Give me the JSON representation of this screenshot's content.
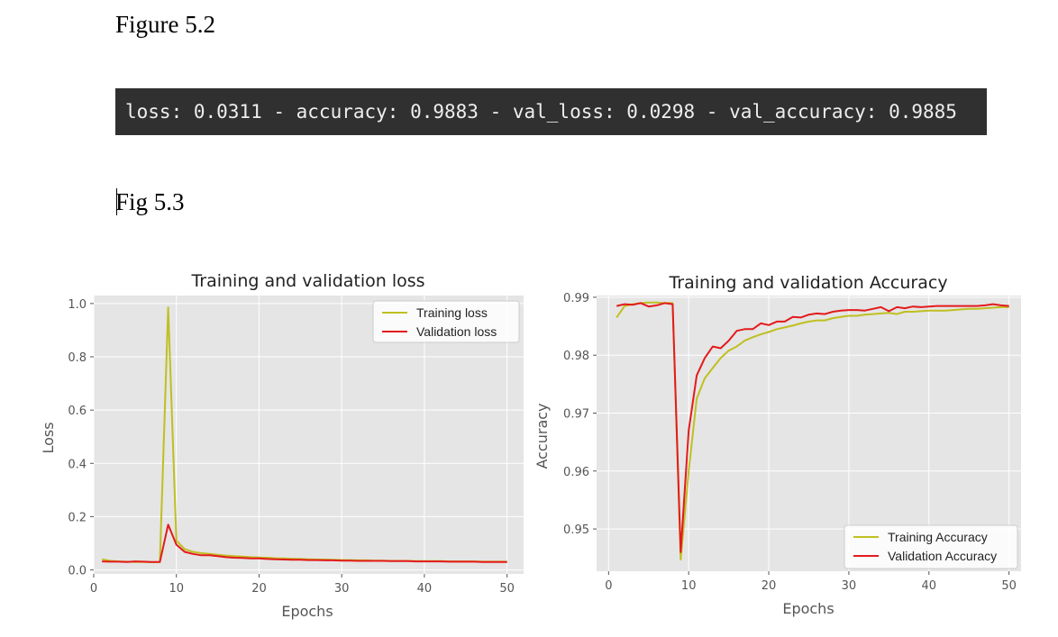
{
  "document": {
    "figure_5_2_label": "Figure 5.2",
    "console_output": "loss: 0.0311 - accuracy: 0.9883 - val_loss: 0.0298 - val_accuracy: 0.9885",
    "figure_5_3_label": "Fig 5.3"
  },
  "colors": {
    "training": "#bfbf22",
    "validation": "#e41a1c",
    "plot_background": "#e5e5e5",
    "grid": "#ffffff",
    "console_background": "#303030"
  },
  "chart_data": [
    {
      "type": "line",
      "title": "Training and validation loss",
      "xlabel": "Epochs",
      "ylabel": "Loss",
      "xlim": [
        0,
        52
      ],
      "ylim": [
        -0.015,
        1.03
      ],
      "xticks": [
        0,
        10,
        20,
        30,
        40,
        50
      ],
      "yticks": [
        0.0,
        0.2,
        0.4,
        0.6,
        0.8,
        1.0
      ],
      "ytick_labels": [
        "0.0",
        "0.2",
        "0.4",
        "0.6",
        "0.8",
        "1.0"
      ],
      "grid": true,
      "legend_position": "top-right",
      "x": [
        1,
        2,
        3,
        4,
        5,
        6,
        7,
        8,
        9,
        10,
        11,
        12,
        13,
        14,
        15,
        16,
        17,
        18,
        19,
        20,
        21,
        22,
        23,
        24,
        25,
        26,
        27,
        28,
        29,
        30,
        31,
        32,
        33,
        34,
        35,
        36,
        37,
        38,
        39,
        40,
        41,
        42,
        43,
        44,
        45,
        46,
        47,
        48,
        49,
        50
      ],
      "series": [
        {
          "name": "Training loss",
          "color": "#bfbf22",
          "values": [
            0.04,
            0.034,
            0.032,
            0.031,
            0.03,
            0.03,
            0.029,
            0.03,
            0.985,
            0.11,
            0.078,
            0.068,
            0.063,
            0.06,
            0.057,
            0.054,
            0.052,
            0.05,
            0.048,
            0.047,
            0.046,
            0.044,
            0.043,
            0.042,
            0.041,
            0.04,
            0.039,
            0.039,
            0.038,
            0.037,
            0.037,
            0.036,
            0.036,
            0.035,
            0.035,
            0.034,
            0.034,
            0.034,
            0.033,
            0.033,
            0.033,
            0.033,
            0.032,
            0.032,
            0.032,
            0.032,
            0.031,
            0.031,
            0.031,
            0.031
          ]
        },
        {
          "name": "Validation loss",
          "color": "#e41a1c",
          "values": [
            0.032,
            0.031,
            0.031,
            0.03,
            0.032,
            0.031,
            0.03,
            0.03,
            0.17,
            0.095,
            0.068,
            0.06,
            0.055,
            0.055,
            0.052,
            0.048,
            0.046,
            0.045,
            0.043,
            0.043,
            0.041,
            0.04,
            0.039,
            0.038,
            0.038,
            0.037,
            0.037,
            0.036,
            0.036,
            0.035,
            0.035,
            0.034,
            0.034,
            0.034,
            0.034,
            0.033,
            0.033,
            0.033,
            0.032,
            0.032,
            0.032,
            0.032,
            0.031,
            0.031,
            0.031,
            0.031,
            0.03,
            0.03,
            0.03,
            0.03
          ]
        }
      ]
    },
    {
      "type": "line",
      "title": "Training and validation Accuracy",
      "xlabel": "Epochs",
      "ylabel": "Accuracy",
      "xlim": [
        -1.5,
        51.5
      ],
      "ylim": [
        0.9427,
        0.9903
      ],
      "xticks": [
        0,
        10,
        20,
        30,
        40,
        50
      ],
      "yticks": [
        0.95,
        0.96,
        0.97,
        0.98,
        0.99
      ],
      "ytick_labels": [
        "0.95",
        "0.96",
        "0.97",
        "0.98",
        "0.99"
      ],
      "grid": true,
      "legend_position": "lower-right",
      "x": [
        1,
        2,
        3,
        4,
        5,
        6,
        7,
        8,
        9,
        10,
        11,
        12,
        13,
        14,
        15,
        16,
        17,
        18,
        19,
        20,
        21,
        22,
        23,
        24,
        25,
        26,
        27,
        28,
        29,
        30,
        31,
        32,
        33,
        34,
        35,
        36,
        37,
        38,
        39,
        40,
        41,
        42,
        43,
        44,
        45,
        46,
        47,
        48,
        49,
        50
      ],
      "series": [
        {
          "name": "Training Accuracy",
          "color": "#bfbf22",
          "values": [
            0.9865,
            0.9885,
            0.9888,
            0.989,
            0.9891,
            0.9891,
            0.989,
            0.989,
            0.9447,
            0.96,
            0.9725,
            0.976,
            0.9778,
            0.9795,
            0.9808,
            0.9815,
            0.9825,
            0.9831,
            0.9836,
            0.984,
            0.9845,
            0.9848,
            0.9851,
            0.9855,
            0.9858,
            0.986,
            0.986,
            0.9864,
            0.9866,
            0.9868,
            0.9868,
            0.987,
            0.9871,
            0.9872,
            0.9873,
            0.9871,
            0.9875,
            0.9875,
            0.9876,
            0.9877,
            0.9877,
            0.9877,
            0.9878,
            0.9879,
            0.988,
            0.988,
            0.9881,
            0.9882,
            0.9883,
            0.9883
          ]
        },
        {
          "name": "Validation Accuracy",
          "color": "#e41a1c",
          "values": [
            0.9885,
            0.9888,
            0.9887,
            0.989,
            0.9884,
            0.9886,
            0.989,
            0.9888,
            0.946,
            0.967,
            0.9765,
            0.9795,
            0.9815,
            0.9812,
            0.9825,
            0.9842,
            0.9845,
            0.9845,
            0.9855,
            0.9852,
            0.9858,
            0.9858,
            0.9866,
            0.9865,
            0.987,
            0.9872,
            0.9871,
            0.9875,
            0.9877,
            0.9878,
            0.9878,
            0.9877,
            0.988,
            0.9883,
            0.9876,
            0.9883,
            0.9881,
            0.9884,
            0.9883,
            0.9884,
            0.9885,
            0.9885,
            0.9885,
            0.9885,
            0.9885,
            0.9885,
            0.9886,
            0.9888,
            0.9886,
            0.9885
          ]
        }
      ]
    }
  ]
}
